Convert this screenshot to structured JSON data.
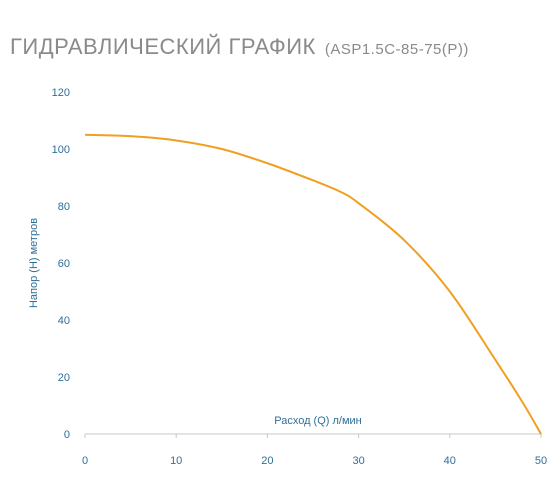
{
  "header": {
    "title": "ГИДРАВЛИЧЕСКИЙ ГРАФИК",
    "model": "(ASP1.5C-85-75(P))"
  },
  "chart_data": {
    "type": "line",
    "xlabel": "Расход (Q) л/мин",
    "ylabel": "Напор (Н) метров",
    "xlim": [
      0,
      50
    ],
    "ylim": [
      0,
      120
    ],
    "x_ticks": [
      0,
      10,
      20,
      30,
      40,
      50
    ],
    "y_ticks": [
      0,
      20,
      40,
      60,
      80,
      100,
      120
    ],
    "grid": false,
    "series": [
      {
        "x": [
          0,
          5,
          10,
          15,
          20,
          25,
          28,
          30,
          35,
          40,
          45,
          48,
          50
        ],
        "y": [
          105,
          104.5,
          103,
          100,
          95,
          89,
          85,
          81,
          68,
          50,
          26,
          11,
          0
        ]
      }
    ]
  },
  "colors": {
    "line": "#f0a021",
    "axis": "#c8c8c8",
    "tick_text": "#2f6f97",
    "title": "#8a8a8a"
  }
}
